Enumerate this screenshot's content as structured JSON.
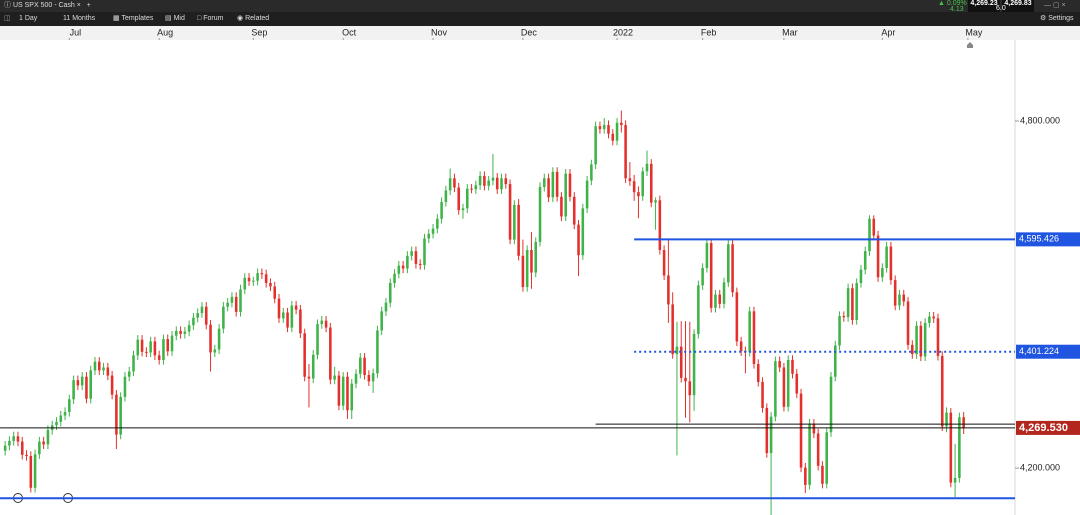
{
  "toolbar": {
    "instrument": "US SPX 500 - Cash",
    "interval": "1 Day",
    "range": "11 Months",
    "buttons": [
      "Templates",
      "Mid",
      "Forum",
      "Related"
    ],
    "change_pct": "0.09%",
    "change": "4.13",
    "bid": "4,269.23",
    "ask": "4,269.83",
    "spread": "6.0",
    "settings": "Settings"
  },
  "chart_data": {
    "type": "candlestick",
    "xlim": [
      -1.2,
      236
    ],
    "xticks": [
      {
        "value": 15,
        "label": "Jul"
      },
      {
        "value": 36,
        "label": "Aug"
      },
      {
        "value": 58,
        "label": "Sep"
      },
      {
        "value": 79,
        "label": "Oct"
      },
      {
        "value": 100,
        "label": "Nov"
      },
      {
        "value": 121,
        "label": "Dec"
      },
      {
        "value": 143,
        "label": "2022"
      },
      {
        "value": 163,
        "label": "Feb"
      },
      {
        "value": 182,
        "label": "Mar"
      },
      {
        "value": 205,
        "label": "Apr"
      },
      {
        "value": 225,
        "label": "May"
      }
    ],
    "ylim": [
      4119,
      4940
    ],
    "yticks": [
      {
        "value": 4800,
        "label": "4,800.000"
      },
      {
        "value": 4200,
        "label": "4,200.000"
      }
    ],
    "up_color": "#3fb34a",
    "down_color": "#e3302c",
    "levels": [
      {
        "value": 4595.426,
        "label": "4,595.426",
        "color": "#1f55e0",
        "style": "solid",
        "start": 147
      },
      {
        "value": 4401.224,
        "label": "4,401.224",
        "color": "#1f55e0",
        "style": "dotted",
        "start": 147
      },
      {
        "value": 4276,
        "color": "#111111",
        "style": "solid",
        "start": 138
      },
      {
        "value": 4269.53,
        "label": "4,269.530",
        "color": "#111111",
        "label_color": "#b3261e",
        "style": "solid"
      },
      {
        "value": 4148,
        "color": "#1f55e0",
        "style": "solid"
      }
    ],
    "open": [
      4230,
      4239,
      4247,
      4255,
      4246,
      4223,
      4221,
      4166,
      4224,
      4246,
      4241,
      4266,
      4274,
      4280,
      4291,
      4297,
      4319,
      4352,
      4343,
      4358,
      4320,
      4369,
      4384,
      4369,
      4374,
      4360,
      4327,
      4258,
      4323,
      4358,
      4367,
      4395,
      4422,
      4401,
      4400,
      4419,
      4395,
      4387,
      4423,
      4402,
      4429,
      4437,
      4432,
      4436,
      4447,
      4460,
      4468,
      4479,
      4448,
      4400,
      4405,
      4441,
      4479,
      4486,
      4496,
      4470,
      4509,
      4529,
      4523,
      4524,
      4537,
      4535,
      4520,
      4514,
      4493,
      4459,
      4469,
      4443,
      4481,
      4474,
      4433,
      4358,
      4355,
      4396,
      4449,
      4455,
      4443,
      4353,
      4360,
      4308,
      4358,
      4300,
      4346,
      4363,
      4391,
      4361,
      4350,
      4364,
      4438,
      4471,
      4486,
      4520,
      4536,
      4550,
      4545,
      4567,
      4575,
      4553,
      4551,
      4597,
      4605,
      4614,
      4631,
      4660,
      4680,
      4701,
      4685,
      4646,
      4649,
      4683,
      4682,
      4689,
      4705,
      4688,
      4697,
      4702,
      4682,
      4701,
      4691,
      4595,
      4655,
      4567,
      4513,
      4577,
      4538,
      4591,
      4686,
      4701,
      4668,
      4712,
      4669,
      4635,
      4709,
      4669,
      4621,
      4568,
      4649,
      4697,
      4725,
      4791,
      4786,
      4793,
      4778,
      4766,
      4797,
      4793,
      4701,
      4696,
      4677,
      4670,
      4713,
      4726,
      4659,
      4663,
      4577,
      4533,
      4483,
      4397,
      4410,
      4356,
      4350,
      4326,
      4432,
      4516,
      4546,
      4589,
      4477,
      4500,
      4484,
      4521,
      4587,
      4504,
      4419,
      4402,
      4401,
      4471,
      4380,
      4349,
      4304,
      4226,
      4289,
      4385,
      4374,
      4306,
      4387,
      4363,
      4329,
      4201,
      4171,
      4277,
      4260,
      4204,
      4173,
      4262,
      4358,
      4412,
      4463,
      4461,
      4511,
      4456,
      4520,
      4543,
      4575,
      4631,
      4602,
      4530,
      4546,
      4583,
      4525,
      4481,
      4500,
      4488,
      4413,
      4397,
      4446,
      4393,
      4451,
      4462,
      4459,
      4394,
      4272,
      4296,
      4175,
      4183,
      4288
    ],
    "high": [
      4247,
      4255,
      4263,
      4263,
      4254,
      4231,
      4229,
      4232,
      4254,
      4254,
      4274,
      4282,
      4288,
      4299,
      4305,
      4327,
      4360,
      4360,
      4366,
      4366,
      4377,
      4392,
      4392,
      4382,
      4382,
      4368,
      4335,
      4331,
      4366,
      4375,
      4403,
      4430,
      4430,
      4409,
      4427,
      4427,
      4403,
      4431,
      4431,
      4437,
      4445,
      4445,
      4444,
      4455,
      4468,
      4476,
      4487,
      4487,
      4456,
      4413,
      4449,
      4487,
      4494,
      4504,
      4504,
      4517,
      4537,
      4537,
      4531,
      4545,
      4545,
      4543,
      4528,
      4522,
      4501,
      4477,
      4477,
      4489,
      4489,
      4482,
      4441,
      4380,
      4404,
      4457,
      4463,
      4463,
      4451,
      4375,
      4368,
      4366,
      4366,
      4354,
      4371,
      4399,
      4399,
      4369,
      4372,
      4446,
      4479,
      4494,
      4528,
      4544,
      4558,
      4558,
      4575,
      4583,
      4583,
      4561,
      4605,
      4613,
      4622,
      4639,
      4668,
      4688,
      4718,
      4709,
      4693,
      4657,
      4691,
      4691,
      4697,
      4713,
      4713,
      4705,
      4743,
      4710,
      4709,
      4709,
      4699,
      4663,
      4665,
      4595,
      4585,
      4608,
      4599,
      4694,
      4709,
      4709,
      4720,
      4720,
      4677,
      4717,
      4717,
      4677,
      4629,
      4657,
      4705,
      4733,
      4799,
      4799,
      4805,
      4801,
      4786,
      4805,
      4818,
      4801,
      4729,
      4707,
      4687,
      4720,
      4749,
      4734,
      4668,
      4671,
      4585,
      4597,
      4504,
      4453,
      4454,
      4454,
      4453,
      4440,
      4524,
      4554,
      4597,
      4597,
      4508,
      4508,
      4529,
      4595,
      4595,
      4512,
      4427,
      4410,
      4479,
      4479,
      4388,
      4357,
      4312,
      4297,
      4393,
      4393,
      4382,
      4395,
      4395,
      4371,
      4337,
      4209,
      4285,
      4285,
      4268,
      4212,
      4270,
      4366,
      4420,
      4471,
      4471,
      4519,
      4519,
      4528,
      4551,
      4583,
      4637,
      4637,
      4610,
      4554,
      4591,
      4591,
      4533,
      4508,
      4508,
      4496,
      4421,
      4454,
      4454,
      4459,
      4470,
      4470,
      4467,
      4402,
      4305,
      4304,
      4242,
      4296,
      4297
    ],
    "low": [
      4222,
      4231,
      4239,
      4238,
      4215,
      4213,
      4158,
      4158,
      4216,
      4233,
      4233,
      4258,
      4266,
      4272,
      4283,
      4289,
      4311,
      4335,
      4335,
      4312,
      4312,
      4361,
      4361,
      4361,
      4352,
      4319,
      4233,
      4250,
      4315,
      4350,
      4359,
      4387,
      4393,
      4392,
      4392,
      4387,
      4379,
      4379,
      4394,
      4394,
      4421,
      4424,
      4424,
      4428,
      4439,
      4452,
      4460,
      4440,
      4367,
      4392,
      4397,
      4433,
      4471,
      4478,
      4462,
      4462,
      4501,
      4515,
      4515,
      4516,
      4527,
      4512,
      4506,
      4485,
      4451,
      4451,
      4435,
      4435,
      4466,
      4425,
      4350,
      4305,
      4347,
      4388,
      4441,
      4435,
      4345,
      4345,
      4300,
      4300,
      4285,
      4285,
      4338,
      4355,
      4353,
      4342,
      4330,
      4356,
      4430,
      4463,
      4478,
      4512,
      4528,
      4537,
      4537,
      4559,
      4545,
      4543,
      4543,
      4589,
      4597,
      4606,
      4623,
      4652,
      4672,
      4677,
      4638,
      4631,
      4641,
      4675,
      4674,
      4681,
      4680,
      4680,
      4689,
      4674,
      4674,
      4683,
      4587,
      4587,
      4559,
      4505,
      4505,
      4510,
      4530,
      4583,
      4678,
      4660,
      4660,
      4661,
      4627,
      4627,
      4661,
      4613,
      4532,
      4560,
      4641,
      4689,
      4717,
      4778,
      4778,
      4770,
      4758,
      4758,
      4780,
      4693,
      4688,
      4662,
      4632,
      4662,
      4705,
      4651,
      4612,
      4569,
      4525,
      4451,
      4389,
      4222,
      4348,
      4287,
      4279,
      4299,
      4424,
      4508,
      4538,
      4469,
      4469,
      4476,
      4476,
      4513,
      4496,
      4411,
      4394,
      4364,
      4393,
      4372,
      4341,
      4296,
      4218,
      4114,
      4281,
      4366,
      4298,
      4298,
      4355,
      4321,
      4193,
      4157,
      4163,
      4252,
      4196,
      4165,
      4165,
      4254,
      4350,
      4404,
      4453,
      4453,
      4448,
      4448,
      4512,
      4535,
      4567,
      4594,
      4522,
      4522,
      4538,
      4517,
      4473,
      4473,
      4480,
      4405,
      4389,
      4389,
      4385,
      4385,
      4443,
      4451,
      4386,
      4264,
      4262,
      4167,
      4150,
      4175,
      4259
    ],
    "close": [
      4239,
      4247,
      4255,
      4246,
      4223,
      4221,
      4166,
      4224,
      4246,
      4241,
      4266,
      4274,
      4280,
      4291,
      4297,
      4319,
      4352,
      4343,
      4358,
      4320,
      4369,
      4384,
      4369,
      4374,
      4360,
      4327,
      4258,
      4323,
      4358,
      4367,
      4395,
      4422,
      4401,
      4400,
      4419,
      4395,
      4387,
      4423,
      4402,
      4429,
      4437,
      4432,
      4436,
      4447,
      4460,
      4468,
      4479,
      4448,
      4400,
      4405,
      4441,
      4479,
      4486,
      4496,
      4470,
      4509,
      4529,
      4523,
      4524,
      4537,
      4535,
      4520,
      4514,
      4493,
      4459,
      4469,
      4443,
      4481,
      4474,
      4433,
      4358,
      4355,
      4396,
      4449,
      4455,
      4443,
      4353,
      4360,
      4308,
      4358,
      4300,
      4346,
      4363,
      4391,
      4361,
      4350,
      4364,
      4438,
      4471,
      4486,
      4520,
      4536,
      4550,
      4545,
      4567,
      4575,
      4553,
      4551,
      4597,
      4605,
      4614,
      4631,
      4660,
      4680,
      4701,
      4685,
      4646,
      4649,
      4683,
      4682,
      4689,
      4705,
      4688,
      4697,
      4702,
      4682,
      4701,
      4691,
      4595,
      4655,
      4567,
      4513,
      4577,
      4538,
      4591,
      4686,
      4701,
      4668,
      4712,
      4669,
      4635,
      4709,
      4669,
      4621,
      4568,
      4649,
      4697,
      4725,
      4791,
      4786,
      4793,
      4778,
      4766,
      4797,
      4793,
      4701,
      4696,
      4677,
      4670,
      4713,
      4726,
      4659,
      4663,
      4577,
      4533,
      4483,
      4397,
      4410,
      4356,
      4350,
      4326,
      4432,
      4516,
      4546,
      4589,
      4477,
      4500,
      4484,
      4521,
      4587,
      4504,
      4419,
      4402,
      4401,
      4471,
      4380,
      4349,
      4304,
      4226,
      4289,
      4385,
      4374,
      4306,
      4387,
      4363,
      4329,
      4201,
      4171,
      4277,
      4260,
      4204,
      4173,
      4262,
      4358,
      4412,
      4463,
      4461,
      4511,
      4456,
      4520,
      4543,
      4575,
      4631,
      4602,
      4530,
      4546,
      4583,
      4525,
      4481,
      4500,
      4488,
      4413,
      4397,
      4446,
      4393,
      4451,
      4462,
      4459,
      4394,
      4272,
      4296,
      4175,
      4183,
      4288,
      4269
    ]
  }
}
